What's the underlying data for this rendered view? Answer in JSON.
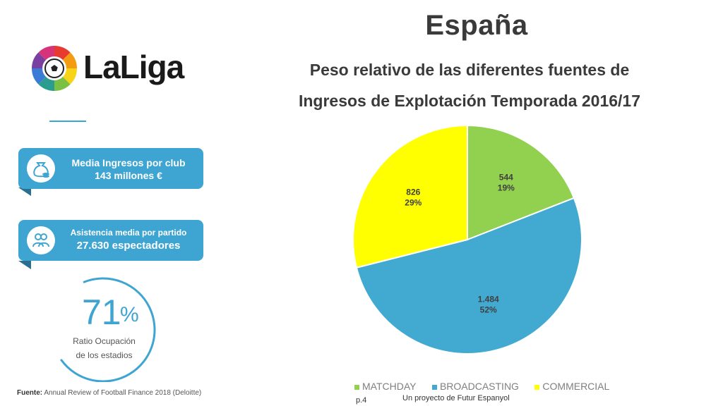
{
  "title": "España",
  "subtitle_line1": "Peso relativo de las diferentes fuentes de",
  "subtitle_line2": "Ingresos de Explotación Temporada 2016/17",
  "logo_text": "LaLiga",
  "cards": [
    {
      "line1": "Media Ingresos por club",
      "line2": "143 millones €"
    },
    {
      "line1": "Asistencia media por partido",
      "line2": "27.630 espectadores"
    }
  ],
  "ratio": {
    "number": "71",
    "unit": "%",
    "label1": "Ratio Ocupación",
    "label2": "de los estadios",
    "value": 0.71
  },
  "footer": {
    "source_label": "Fuente:",
    "source_text": "Annual Review of Football Finance 2018 (Deloitte)",
    "page": "p.4",
    "project": "Un proyecto de Futur Espanyol"
  },
  "colors": {
    "matchday": "#92d050",
    "broadcasting": "#42aad1",
    "commercial": "#ffff00",
    "accent": "#3ea5d2"
  },
  "chart_data": {
    "type": "pie",
    "categories": [
      "MATCHDAY",
      "BROADCASTING",
      "COMMERCIAL"
    ],
    "values": [
      544,
      1484,
      826
    ],
    "value_labels": [
      "544",
      "1.484",
      "826"
    ],
    "percent_labels": [
      "19%",
      "52%",
      "29%"
    ],
    "legend_position": "bottom"
  }
}
